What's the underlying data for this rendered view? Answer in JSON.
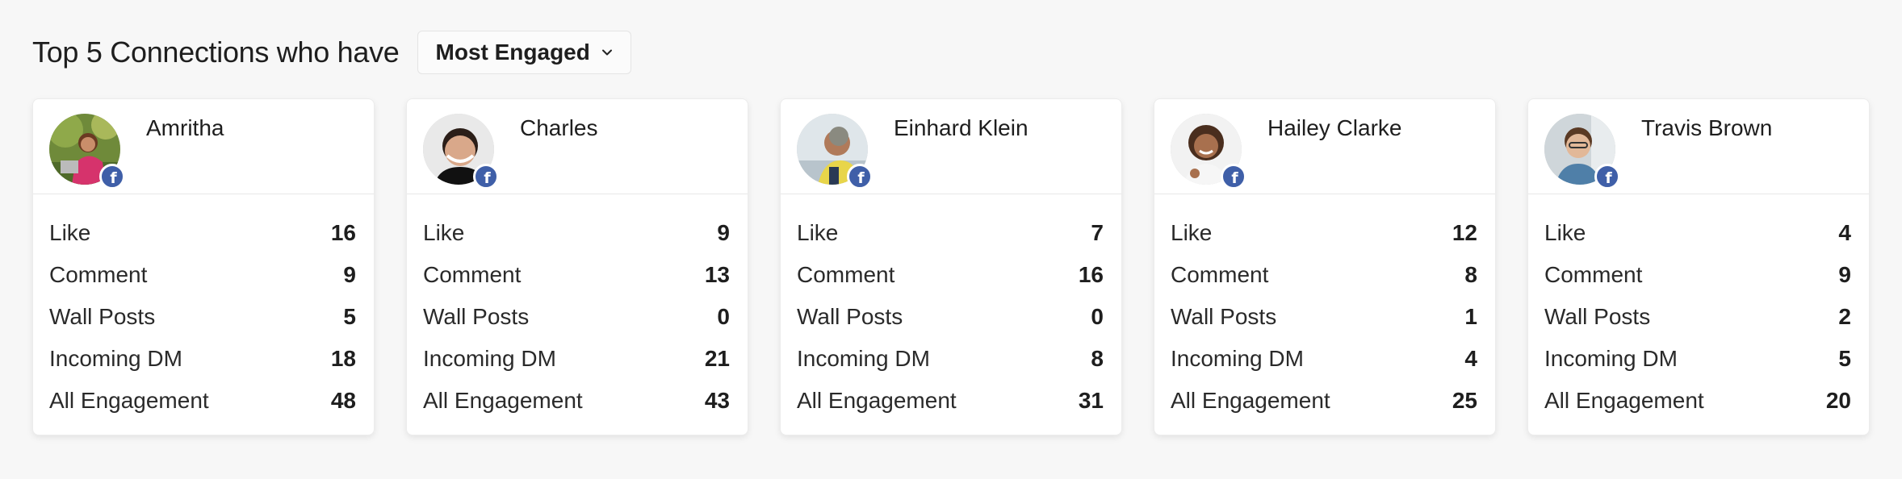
{
  "header": {
    "title": "Top 5 Connections who have",
    "dropdown": {
      "selected": "Most Engaged"
    }
  },
  "colors": {
    "facebook_badge": "#3f5fa8",
    "card_bg": "#ffffff",
    "page_bg": "#f7f7f7"
  },
  "cards": [
    {
      "name": "Amritha",
      "network_icon": "facebook-icon",
      "stats": [
        {
          "label": "Like",
          "value": "16"
        },
        {
          "label": "Comment",
          "value": "9"
        },
        {
          "label": "Wall Posts",
          "value": "5"
        },
        {
          "label": "Incoming DM",
          "value": "18"
        },
        {
          "label": "All Engagement",
          "value": "48"
        }
      ]
    },
    {
      "name": "Charles",
      "network_icon": "facebook-icon",
      "stats": [
        {
          "label": "Like",
          "value": "9"
        },
        {
          "label": "Comment",
          "value": "13"
        },
        {
          "label": "Wall Posts",
          "value": "0"
        },
        {
          "label": "Incoming DM",
          "value": "21"
        },
        {
          "label": "All Engagement",
          "value": "43"
        }
      ]
    },
    {
      "name": "Einhard Klein",
      "network_icon": "facebook-icon",
      "stats": [
        {
          "label": "Like",
          "value": "7"
        },
        {
          "label": "Comment",
          "value": "16"
        },
        {
          "label": "Wall Posts",
          "value": "0"
        },
        {
          "label": "Incoming DM",
          "value": "8"
        },
        {
          "label": "All Engagement",
          "value": "31"
        }
      ]
    },
    {
      "name": "Hailey Clarke",
      "network_icon": "facebook-icon",
      "stats": [
        {
          "label": "Like",
          "value": "12"
        },
        {
          "label": "Comment",
          "value": "8"
        },
        {
          "label": "Wall Posts",
          "value": "1"
        },
        {
          "label": "Incoming DM",
          "value": "4"
        },
        {
          "label": "All Engagement",
          "value": "25"
        }
      ]
    },
    {
      "name": "Travis Brown",
      "network_icon": "facebook-icon",
      "stats": [
        {
          "label": "Like",
          "value": "4"
        },
        {
          "label": "Comment",
          "value": "9"
        },
        {
          "label": "Wall Posts",
          "value": "2"
        },
        {
          "label": "Incoming DM",
          "value": "5"
        },
        {
          "label": "All Engagement",
          "value": "20"
        }
      ]
    }
  ]
}
